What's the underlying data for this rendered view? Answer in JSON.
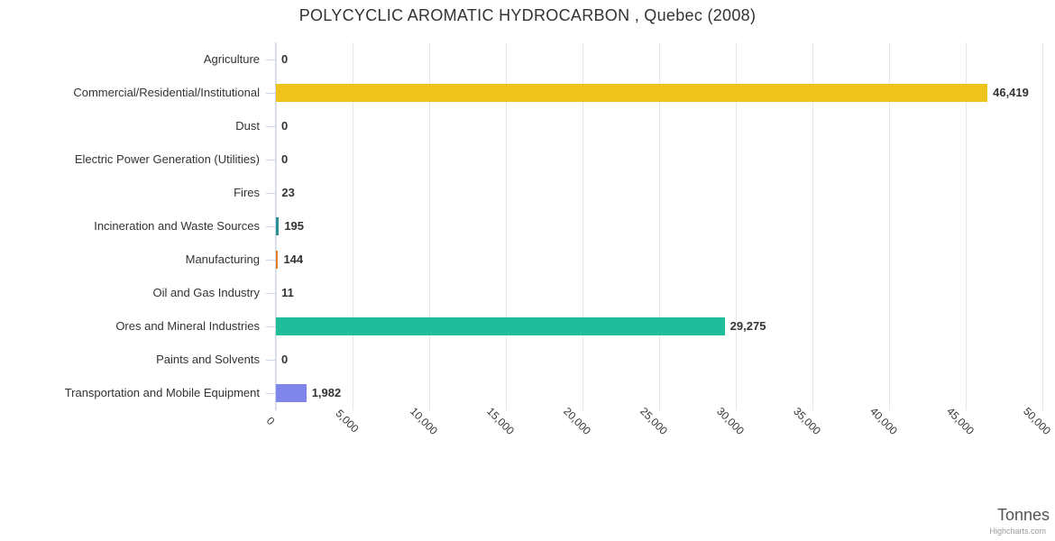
{
  "credits": "Highcharts.com",
  "styles": {
    "title_color": "#333333",
    "label_color": "#333333",
    "grid_color": "#e6e6e6",
    "axis_color": "#ccd6eb",
    "credit_color": "#999999",
    "axis_title_color": "#555555"
  },
  "chart_data": {
    "type": "bar",
    "title": "POLYCYCLIC AROMATIC HYDROCARBON , Quebec (2008)",
    "xlabel": "Tonnes",
    "ylabel": "",
    "xlim": [
      0,
      50000
    ],
    "grid": true,
    "legend": "none",
    "categories": [
      "Agriculture",
      "Commercial/Residential/Institutional",
      "Dust",
      "Electric Power Generation (Utilities)",
      "Fires",
      "Incineration and Waste Sources",
      "Manufacturing",
      "Oil and Gas Industry",
      "Ores and Mineral Industries",
      "Paints and Solvents",
      "Transportation and Mobile Equipment"
    ],
    "values": [
      0,
      46419,
      0,
      0,
      23,
      195,
      144,
      11,
      29275,
      0,
      1982
    ],
    "value_labels": [
      "0",
      "46,419",
      "0",
      "0",
      "23",
      "195",
      "144",
      "11",
      "29,275",
      "0",
      "1,982"
    ],
    "bar_colors": [
      null,
      "#eec31c",
      null,
      null,
      null,
      "#2b908f",
      "#ea7d28",
      null,
      "#20bd9b",
      null,
      "#8085e9"
    ],
    "xticks": [
      {
        "value": 0,
        "label": "0"
      },
      {
        "value": 5000,
        "label": "5,000"
      },
      {
        "value": 10000,
        "label": "10,000"
      },
      {
        "value": 15000,
        "label": "15,000"
      },
      {
        "value": 20000,
        "label": "20,000"
      },
      {
        "value": 25000,
        "label": "25,000"
      },
      {
        "value": 30000,
        "label": "30,000"
      },
      {
        "value": 35000,
        "label": "35,000"
      },
      {
        "value": 40000,
        "label": "40,000"
      },
      {
        "value": 45000,
        "label": "45,000"
      },
      {
        "value": 50000,
        "label": "50,000"
      }
    ]
  }
}
